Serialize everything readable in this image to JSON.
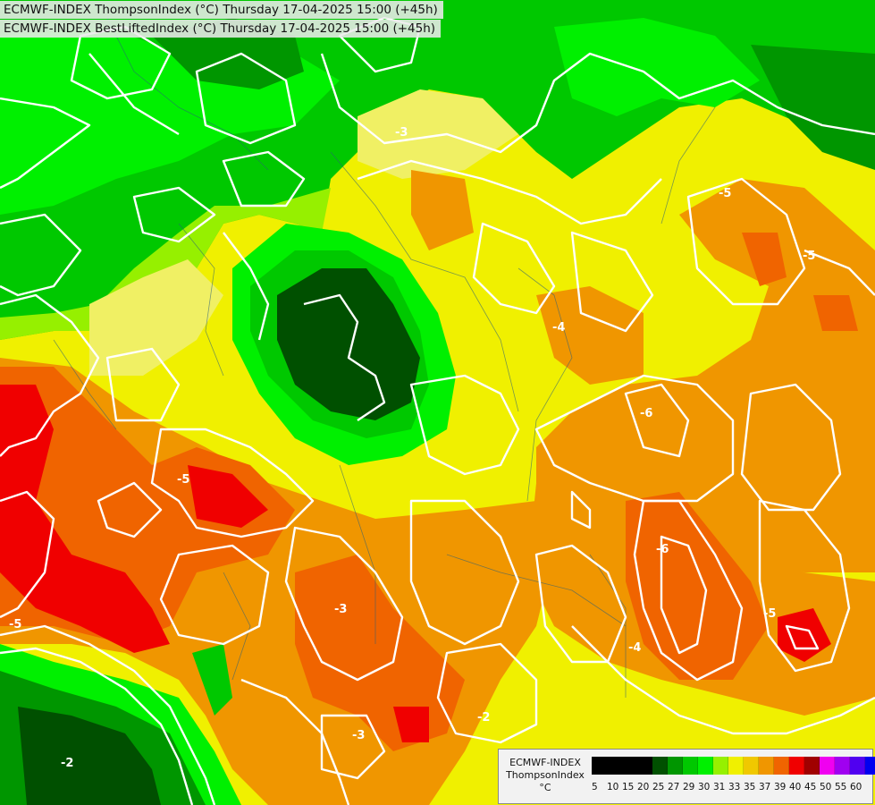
{
  "header": {
    "line1": "ECMWF-INDEX ThompsonIndex (°C) Thursday 17-04-2025 15:00 (+45h)",
    "line2": "ECMWF-INDEX BestLiftedIndex (°C) Thursday 17-04-2025 15:00 (+45h)"
  },
  "legend": {
    "model": "ECMWF-INDEX",
    "parameter": "ThompsonIndex",
    "unit": "°C",
    "ticks": [
      "5",
      "10",
      "15",
      "20",
      "25",
      "27",
      "29",
      "30",
      "31",
      "33",
      "35",
      "37",
      "39",
      "40",
      "45",
      "50",
      "55",
      "60"
    ],
    "colors": [
      "#000000",
      "#000000",
      "#000000",
      "#000000",
      "#005000",
      "#009600",
      "#00c800",
      "#00f000",
      "#96f000",
      "#f0f000",
      "#f0c800",
      "#f09600",
      "#f06400",
      "#f00000",
      "#a00000",
      "#f000f0",
      "#a000f0",
      "#5000f0",
      "#0000f0"
    ]
  },
  "contour_labels": [
    "-3",
    "-5",
    "-5",
    "-6",
    "-4",
    "-5",
    "-3",
    "-2",
    "-5",
    "-3",
    "-2",
    "-5",
    "-6",
    "-4"
  ],
  "colors": {
    "green_dark": "#005000",
    "green": "#009600",
    "green_mid": "#00c800",
    "green_light": "#00f000",
    "lime": "#96f000",
    "yellow": "#f0f000",
    "yellow_pale": "#f0f064",
    "orange_light": "#f0c800",
    "orange": "#f09600",
    "orange_red": "#f06400",
    "red": "#f00000",
    "contour": "#ffffff"
  }
}
